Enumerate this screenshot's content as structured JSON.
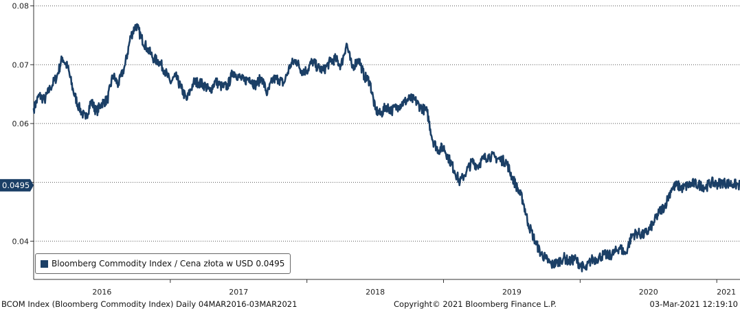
{
  "colors": {
    "series": "#1b3f66",
    "current_label_bg": "#1b3f66",
    "current_label_text": "#ffffff"
  },
  "chart_data": {
    "type": "line",
    "title": "",
    "xlabel": "",
    "ylabel": "",
    "x_range": [
      2016.0,
      2021.17
    ],
    "ylim": [
      0.0335,
      0.081
    ],
    "y_ticks": [
      0.04,
      0.05,
      0.06,
      0.07,
      0.08
    ],
    "y_tick_labels": [
      "0.04",
      "",
      "0.06",
      "0.07",
      "0.08"
    ],
    "x_tick_positions": [
      2016.5,
      2017.5,
      2018.5,
      2019.5,
      2020.5,
      2021.07
    ],
    "x_tick_labels": [
      "2016",
      "2017",
      "2018",
      "2019",
      "2020",
      "2021"
    ],
    "grid": true,
    "current_value": 0.0495,
    "current_value_label": "0.0495",
    "series": [
      {
        "name": "Bloomberg Commodity Index / Cena złota w USD",
        "x": [
          2016.0,
          2016.04,
          2016.08,
          2016.12,
          2016.17,
          2016.21,
          2016.25,
          2016.29,
          2016.33,
          2016.38,
          2016.42,
          2016.46,
          2016.5,
          2016.54,
          2016.58,
          2016.62,
          2016.67,
          2016.71,
          2016.75,
          2016.79,
          2016.83,
          2016.88,
          2016.92,
          2016.96,
          2017.0,
          2017.04,
          2017.08,
          2017.12,
          2017.17,
          2017.21,
          2017.25,
          2017.29,
          2017.33,
          2017.38,
          2017.42,
          2017.46,
          2017.5,
          2017.54,
          2017.58,
          2017.62,
          2017.67,
          2017.71,
          2017.75,
          2017.79,
          2017.83,
          2017.88,
          2017.92,
          2017.96,
          2018.0,
          2018.04,
          2018.08,
          2018.12,
          2018.17,
          2018.21,
          2018.25,
          2018.29,
          2018.33,
          2018.38,
          2018.42,
          2018.46,
          2018.5,
          2018.54,
          2018.58,
          2018.62,
          2018.67,
          2018.71,
          2018.75,
          2018.79,
          2018.83,
          2018.88,
          2018.92,
          2018.96,
          2019.0,
          2019.04,
          2019.08,
          2019.12,
          2019.17,
          2019.21,
          2019.25,
          2019.29,
          2019.33,
          2019.38,
          2019.42,
          2019.46,
          2019.5,
          2019.54,
          2019.58,
          2019.62,
          2019.67,
          2019.71,
          2019.75,
          2019.79,
          2019.83,
          2019.88,
          2019.92,
          2019.96,
          2020.0,
          2020.04,
          2020.08,
          2020.12,
          2020.17,
          2020.21,
          2020.25,
          2020.29,
          2020.33,
          2020.38,
          2020.42,
          2020.46,
          2020.5,
          2020.54,
          2020.58,
          2020.62,
          2020.67,
          2020.71,
          2020.75,
          2020.79,
          2020.83,
          2020.88,
          2020.92,
          2020.96,
          2021.0,
          2021.04,
          2021.08,
          2021.12,
          2021.17
        ],
        "values": [
          0.0625,
          0.0648,
          0.064,
          0.066,
          0.068,
          0.0712,
          0.0695,
          0.0655,
          0.0628,
          0.0608,
          0.0638,
          0.062,
          0.0635,
          0.064,
          0.0682,
          0.0666,
          0.07,
          0.0748,
          0.0768,
          0.0745,
          0.0728,
          0.071,
          0.0705,
          0.069,
          0.067,
          0.068,
          0.066,
          0.064,
          0.067,
          0.067,
          0.0665,
          0.0655,
          0.0672,
          0.0662,
          0.0664,
          0.0688,
          0.068,
          0.0672,
          0.0678,
          0.0665,
          0.0678,
          0.065,
          0.0675,
          0.0676,
          0.0668,
          0.07,
          0.0708,
          0.069,
          0.069,
          0.0706,
          0.0695,
          0.069,
          0.0705,
          0.071,
          0.0698,
          0.0736,
          0.0695,
          0.071,
          0.068,
          0.0672,
          0.0624,
          0.0615,
          0.063,
          0.0622,
          0.063,
          0.0636,
          0.0642,
          0.064,
          0.0628,
          0.062,
          0.0572,
          0.0555,
          0.056,
          0.054,
          0.052,
          0.05,
          0.052,
          0.0535,
          0.0528,
          0.054,
          0.0545,
          0.0542,
          0.0538,
          0.0535,
          0.051,
          0.049,
          0.047,
          0.043,
          0.04,
          0.038,
          0.037,
          0.036,
          0.0363,
          0.0372,
          0.0365,
          0.037,
          0.036,
          0.0352,
          0.0368,
          0.037,
          0.0377,
          0.0375,
          0.038,
          0.039,
          0.0378,
          0.041,
          0.0414,
          0.041,
          0.0418,
          0.0432,
          0.045,
          0.046,
          0.049,
          0.0495,
          0.049,
          0.0495,
          0.0498,
          0.0495,
          0.0492,
          0.05,
          0.0497,
          0.05,
          0.0498,
          0.0497,
          0.0495
        ]
      }
    ]
  },
  "legend": {
    "label": "Bloomberg Commodity Index / Cena złota w USD 0.0495"
  },
  "footer": {
    "left": "BCOM Index (Bloomberg Commodity Index)  Daily 04MAR2016-03MAR2021",
    "middle": "Copyright© 2021 Bloomberg Finance L.P.",
    "right": "03-Mar-2021 12:19:10"
  }
}
